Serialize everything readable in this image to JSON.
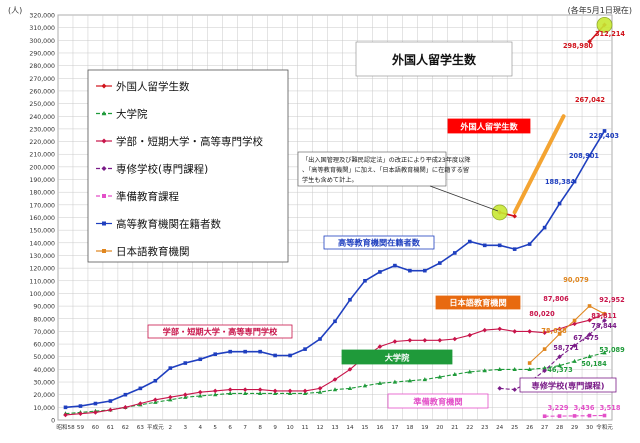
{
  "header": {
    "unit": "(人)",
    "note": "(各年5月1日現在)",
    "title": "外国人留学生数"
  },
  "chart_data": {
    "type": "line",
    "title": "外国人留学生数",
    "ylabel": "(人)",
    "ylim": [
      0,
      320000
    ],
    "yticks": [
      0,
      10000,
      20000,
      30000,
      40000,
      50000,
      60000,
      70000,
      80000,
      90000,
      100000,
      110000,
      120000,
      130000,
      140000,
      150000,
      160000,
      170000,
      180000,
      190000,
      200000,
      210000,
      220000,
      230000,
      240000,
      250000,
      260000,
      270000,
      280000,
      290000,
      300000,
      310000,
      320000
    ],
    "ytick_labels": [
      "0",
      "10,000",
      "20,000",
      "30,000",
      "40,000",
      "50,000",
      "60,000",
      "70,000",
      "80,000",
      "90,000",
      "100,000",
      "110,000",
      "120,000",
      "130,000",
      "140,000",
      "150,000",
      "160,000",
      "170,000",
      "180,000",
      "190,000",
      "200,000",
      "210,000",
      "220,000",
      "230,000",
      "240,000",
      "250,000",
      "260,000",
      "270,000",
      "280,000",
      "290,000",
      "300,000",
      "310,000",
      "320,000"
    ],
    "x": [
      "昭和58",
      "59",
      "60",
      "61",
      "62",
      "63",
      "平成元",
      "2",
      "3",
      "4",
      "5",
      "6",
      "7",
      "8",
      "9",
      "10",
      "11",
      "12",
      "13",
      "14",
      "15",
      "16",
      "17",
      "18",
      "19",
      "20",
      "21",
      "22",
      "23",
      "24",
      "25",
      "26",
      "27",
      "28",
      "29",
      "30",
      "令和元"
    ],
    "grid": true,
    "legend_position": "left",
    "series": [
      {
        "name": "外国人留学生数",
        "color": "#d0121b",
        "marker": "diamond",
        "values": [
          null,
          null,
          null,
          null,
          null,
          null,
          null,
          null,
          null,
          null,
          null,
          null,
          null,
          null,
          null,
          null,
          null,
          null,
          null,
          null,
          null,
          null,
          null,
          null,
          null,
          null,
          null,
          null,
          null,
          164000,
          161000,
          null,
          null,
          null,
          null,
          298980,
          312214
        ]
      },
      {
        "name": "大学院",
        "color": "#1f9a3a",
        "marker": "triangle",
        "values": [
          5000,
          6000,
          7000,
          8000,
          10000,
          12000,
          14000,
          16000,
          18000,
          19000,
          20000,
          21000,
          21000,
          21000,
          21000,
          21000,
          21000,
          22000,
          24000,
          25000,
          27000,
          29000,
          30000,
          31000,
          32000,
          34000,
          36000,
          38000,
          39000,
          40000,
          40000,
          40000,
          41000,
          43000,
          46373,
          50184,
          53089
        ]
      },
      {
        "name": "学部・短期大学・高等専門学校",
        "color": "#c8144a",
        "marker": "diamond",
        "values": [
          4000,
          5000,
          6000,
          8000,
          10000,
          13000,
          16000,
          18000,
          20000,
          22000,
          23000,
          24000,
          24000,
          24000,
          23000,
          23000,
          23000,
          25000,
          32000,
          40000,
          50000,
          58000,
          62000,
          63000,
          63000,
          63000,
          64000,
          67000,
          71000,
          72000,
          70000,
          70000,
          69000,
          72000,
          76000,
          78844,
          83811
        ]
      },
      {
        "name": "専修学校(専門課程)",
        "color": "#7a1c88",
        "marker": "diamond",
        "values": [
          null,
          null,
          null,
          null,
          null,
          null,
          null,
          null,
          null,
          null,
          null,
          null,
          null,
          null,
          null,
          null,
          null,
          null,
          null,
          null,
          null,
          null,
          null,
          null,
          null,
          null,
          null,
          null,
          null,
          25000,
          24000,
          30000,
          39000,
          50000,
          58771,
          67475,
          78658
        ]
      },
      {
        "name": "準備教育課程",
        "color": "#e34fc8",
        "marker": "square",
        "values": [
          null,
          null,
          null,
          null,
          null,
          null,
          null,
          null,
          null,
          null,
          null,
          null,
          null,
          null,
          null,
          null,
          null,
          null,
          null,
          null,
          null,
          null,
          null,
          null,
          null,
          null,
          null,
          null,
          null,
          null,
          null,
          null,
          3000,
          3100,
          3229,
          3436,
          3518
        ]
      },
      {
        "name": "高等教育機関在籍者数",
        "color": "#1f3fbf",
        "marker": "square",
        "values": [
          10000,
          11000,
          13000,
          15000,
          20000,
          25000,
          31000,
          41000,
          45000,
          48000,
          52000,
          54000,
          54000,
          54000,
          51000,
          51000,
          56000,
          64000,
          78000,
          95000,
          110000,
          117000,
          122000,
          118000,
          118000,
          124000,
          132000,
          141000,
          138000,
          138000,
          135000,
          139000,
          152000,
          171000,
          188384,
          208901,
          228403
        ]
      },
      {
        "name": "日本語教育機関",
        "color": "#e0861e",
        "marker": "square",
        "values": [
          null,
          null,
          null,
          null,
          null,
          null,
          null,
          null,
          null,
          null,
          null,
          null,
          null,
          null,
          null,
          null,
          null,
          null,
          null,
          null,
          null,
          null,
          null,
          null,
          null,
          null,
          null,
          null,
          null,
          null,
          null,
          45000,
          56000,
          68000,
          78658,
          90079,
          83811
        ]
      }
    ],
    "data_labels": [
      "312,214",
      "298,980",
      "267,042",
      "228,403",
      "208,901",
      "188,384",
      "90,079",
      "87,806",
      "80,020",
      "83,811",
      "92,952",
      "78,844",
      "78,658",
      "67,475",
      "58,771",
      "50,184",
      "53,089",
      "46,373",
      "3,229",
      "3,436",
      "3,518"
    ],
    "callouts": [
      {
        "text": "外国人留学生数",
        "color": "#ff0000",
        "text_color": "#ffffff"
      },
      {
        "text": "高等教育機関在籍者数",
        "color": "#1f3fbf",
        "text_color": "#1f3fbf"
      },
      {
        "text": "日本語教育機関",
        "color": "#e86a10",
        "text_color": "#ffffff"
      },
      {
        "text": "学部・短期大学・高等専門学校",
        "color": "#c8144a",
        "text_color": "#c8144a"
      },
      {
        "text": "大学院",
        "color": "#1f9a3a",
        "text_color": "#ffffff"
      },
      {
        "text": "準備教育機関",
        "color": "#e34fc8",
        "text_color": "#e34fc8"
      },
      {
        "text": "専修学校(専門課程)",
        "color": "#7a1c88",
        "text_color": "#7a1c88"
      }
    ],
    "note_box": "「出入国管理及び難民認定法」の改正により平成23年度以降、「高等教育機関」に加え、「日本語教育機関」に在籍する留学生も含めて計上。"
  }
}
